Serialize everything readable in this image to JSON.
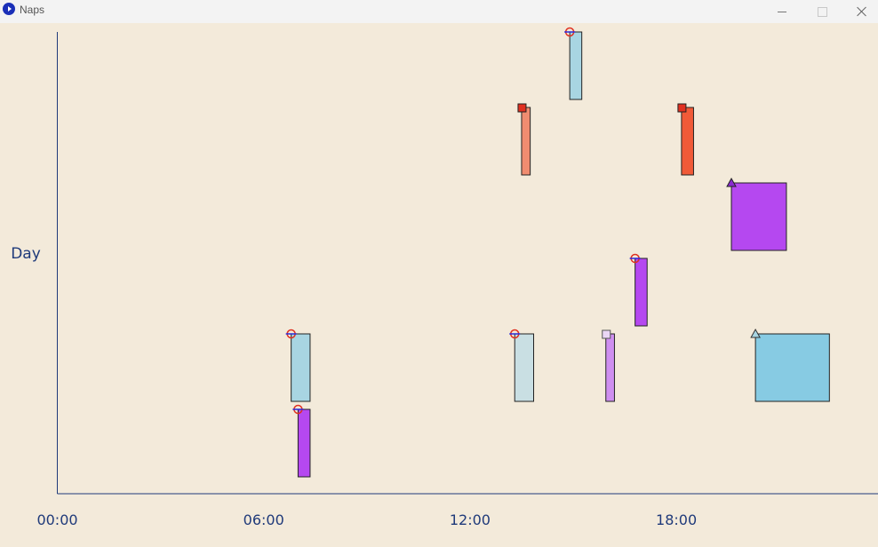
{
  "window": {
    "title": "Naps",
    "icon": "app-play-icon",
    "controls": [
      "minimize-icon",
      "maximize-icon",
      "close-icon"
    ]
  },
  "colors": {
    "background": "#f3eada",
    "axis": "#1f3a7a",
    "label": "#1f3a7a",
    "light_blue": "#a8d5e2",
    "sky_blue": "#87cbe3",
    "light_gray_blue": "#c9dfe3",
    "purple": "#b548f0",
    "light_purple": "#cf8ff0",
    "salmon": "#f08c70",
    "orange_red": "#f05a38",
    "marker_red": "#e03020",
    "marker_blue": "#2b2bd9"
  },
  "chart_data": {
    "type": "timeline",
    "ylabel": "Day",
    "xlabel": "",
    "xlim": [
      0,
      24
    ],
    "x_ticks": [
      {
        "value": 0,
        "label": "00:00"
      },
      {
        "value": 6,
        "label": "06:00"
      },
      {
        "value": 12,
        "label": "12:00"
      },
      {
        "value": 18,
        "label": "18:00"
      }
    ],
    "rows": 6,
    "naps": [
      {
        "row": 0,
        "start": 14.9,
        "end": 15.25,
        "color": "#a8d5e2",
        "marker": "circle-line"
      },
      {
        "row": 1,
        "start": 13.5,
        "end": 13.75,
        "color": "#f08c70",
        "marker": "square"
      },
      {
        "row": 1,
        "start": 18.15,
        "end": 18.5,
        "color": "#f05a38",
        "marker": "square"
      },
      {
        "row": 2,
        "start": 19.6,
        "end": 21.2,
        "color": "#b548f0",
        "marker": "triangle"
      },
      {
        "row": 3,
        "start": 16.8,
        "end": 17.15,
        "color": "#b548f0",
        "marker": "circle-line"
      },
      {
        "row": 4,
        "start": 6.8,
        "end": 7.35,
        "color": "#a8d5e2",
        "marker": "circle-line"
      },
      {
        "row": 4,
        "start": 13.3,
        "end": 13.85,
        "color": "#c9dfe3",
        "marker": "circle-line"
      },
      {
        "row": 4,
        "start": 15.95,
        "end": 16.2,
        "color": "#cf8ff0",
        "marker": "square-light"
      },
      {
        "row": 4,
        "start": 20.3,
        "end": 22.45,
        "color": "#87cbe3",
        "marker": "triangle-light"
      },
      {
        "row": 5,
        "start": 7.0,
        "end": 7.35,
        "color": "#b548f0",
        "marker": "circle-line"
      }
    ]
  }
}
